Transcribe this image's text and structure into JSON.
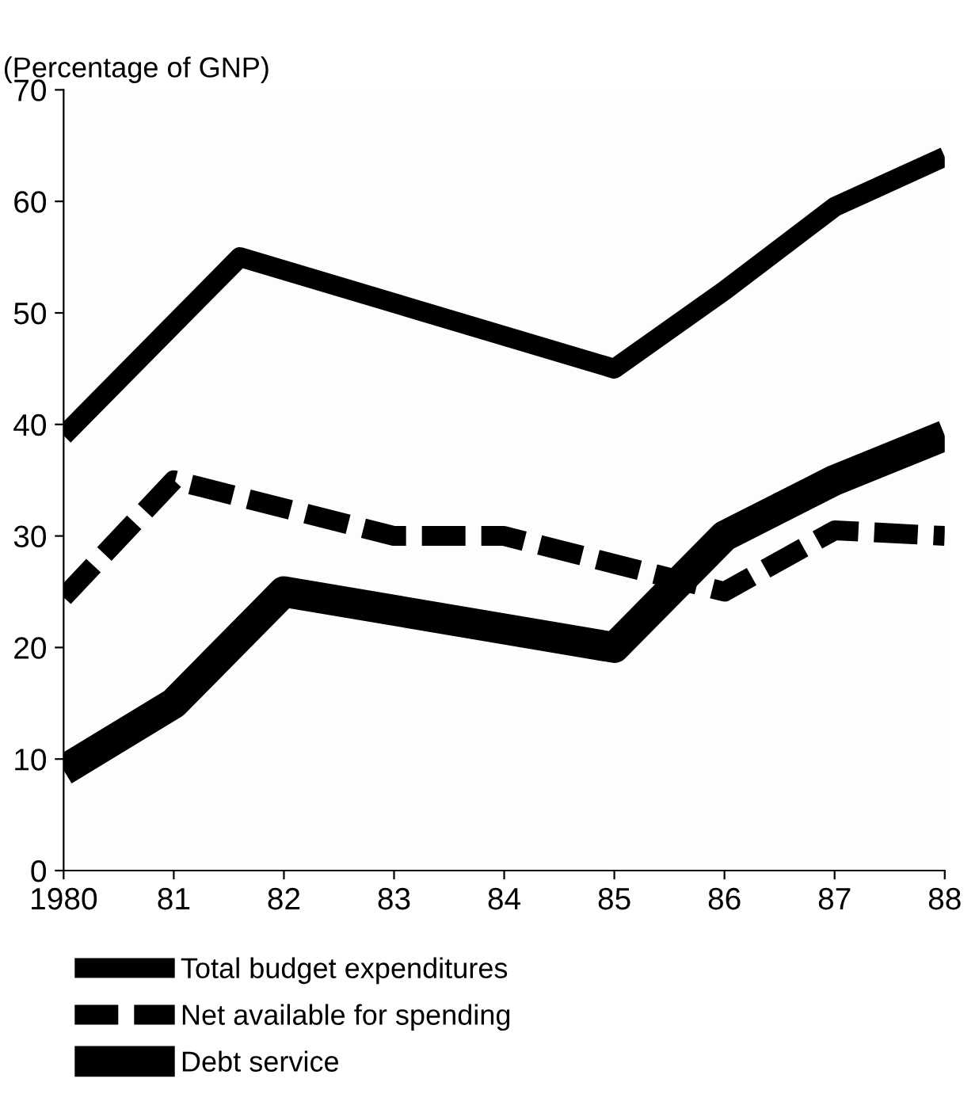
{
  "chart_data": {
    "type": "line",
    "ylabel": "(Percentage of GNP)",
    "xlim": [
      1980,
      1988
    ],
    "xticks": [
      {
        "value": 1980,
        "label": "1980"
      },
      {
        "value": 1981,
        "label": "81"
      },
      {
        "value": 1982,
        "label": "82"
      },
      {
        "value": 1983,
        "label": "83"
      },
      {
        "value": 1984,
        "label": "84"
      },
      {
        "value": 1985,
        "label": "85"
      },
      {
        "value": 1986,
        "label": "86"
      },
      {
        "value": 1987,
        "label": "87"
      },
      {
        "value": 1988,
        "label": "88"
      }
    ],
    "ylim": [
      0,
      70
    ],
    "yticks": [
      0,
      10,
      20,
      30,
      40,
      50,
      60,
      70
    ],
    "grid": false,
    "legend": "bottom",
    "marker": "none",
    "series": [
      {
        "name": "Total budget expenditures",
        "color": "#000000",
        "line_style": "solid",
        "x": [
          1980,
          1981.6,
          1985,
          1986,
          1987,
          1988
        ],
        "values": [
          39,
          55,
          45,
          52,
          59.5,
          64
        ]
      },
      {
        "name": "Net available for spending",
        "color": "#000000",
        "line_style": "dashed",
        "x": [
          1980,
          1981,
          1983,
          1984,
          1985,
          1986,
          1987,
          1988
        ],
        "values": [
          24.5,
          35,
          30,
          30,
          27.5,
          25,
          30.5,
          30
        ]
      },
      {
        "name": "Debt service",
        "color": "#000000",
        "line_style": "solid",
        "x": [
          1980,
          1981,
          1982,
          1985,
          1986,
          1987,
          1988
        ],
        "values": [
          9,
          15,
          25,
          20,
          30,
          35,
          39
        ]
      }
    ]
  }
}
